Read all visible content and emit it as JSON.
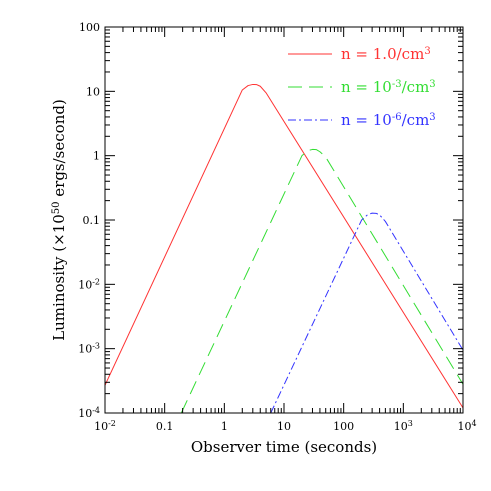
{
  "chart_data": {
    "type": "line",
    "xlabel": "Observer time (seconds)",
    "ylabel": "Luminosity (×10^50 ergs/second)",
    "ylabel_parts": {
      "pre": "Luminosity (×10",
      "exp": "50",
      "post": " ergs/second)"
    },
    "x_scale": "log",
    "y_scale": "log",
    "xlim": [
      0.01,
      10000
    ],
    "ylim": [
      0.0001,
      100
    ],
    "grid": false,
    "legend_position": "top-right",
    "x_tick_labels": [
      {
        "value": 0.01,
        "base": "10",
        "exp": "-2"
      },
      {
        "value": 0.1,
        "base": "0.1",
        "exp": ""
      },
      {
        "value": 1,
        "base": "1",
        "exp": ""
      },
      {
        "value": 10,
        "base": "10",
        "exp": ""
      },
      {
        "value": 100,
        "base": "100",
        "exp": ""
      },
      {
        "value": 1000,
        "base": "10",
        "exp": "3"
      },
      {
        "value": 10000,
        "base": "10",
        "exp": "4"
      }
    ],
    "y_tick_labels": [
      {
        "value": 0.0001,
        "base": "10",
        "exp": "-4"
      },
      {
        "value": 0.001,
        "base": "10",
        "exp": "-3"
      },
      {
        "value": 0.01,
        "base": "10",
        "exp": "-2"
      },
      {
        "value": 0.1,
        "base": "0.1",
        "exp": ""
      },
      {
        "value": 1,
        "base": "1",
        "exp": ""
      },
      {
        "value": 10,
        "base": "10",
        "exp": ""
      },
      {
        "value": 100,
        "base": "100",
        "exp": ""
      }
    ],
    "series": [
      {
        "name": "n = 1.0/cm³",
        "legend_pre": "n = 1.0/cm",
        "legend_exp": "3",
        "color": "#ff3333",
        "dash": "solid",
        "x": [
          0.01,
          2.0,
          2.5,
          3.0,
          3.5,
          4.0,
          5.0,
          10000
        ],
        "y": [
          0.00027,
          10.5,
          12.3,
          12.8,
          12.7,
          12.0,
          9.5,
          0.00012
        ]
      },
      {
        "name": "n = 10⁻³/cm³",
        "legend_pre": "n = 10",
        "legend_sup1": "-3",
        "legend_mid": "/cm",
        "legend_sup2": "3",
        "color": "#33dd33",
        "dash": "long-dash",
        "x": [
          0.19,
          20,
          25,
          30,
          35,
          40,
          50,
          10000
        ],
        "y": [
          0.0001,
          1.0,
          1.2,
          1.25,
          1.24,
          1.15,
          0.95,
          0.00028
        ]
      },
      {
        "name": "n = 10⁻⁶/cm³",
        "legend_pre": "n = 10",
        "legend_sup1": "-6",
        "legend_mid": "/cm",
        "legend_sup2": "3",
        "color": "#3333ff",
        "dash": "dash-dot",
        "x": [
          6,
          200,
          250,
          300,
          350,
          400,
          500,
          10000
        ],
        "y": [
          0.0001,
          0.1,
          0.12,
          0.128,
          0.127,
          0.12,
          0.095,
          0.00095
        ]
      }
    ]
  }
}
